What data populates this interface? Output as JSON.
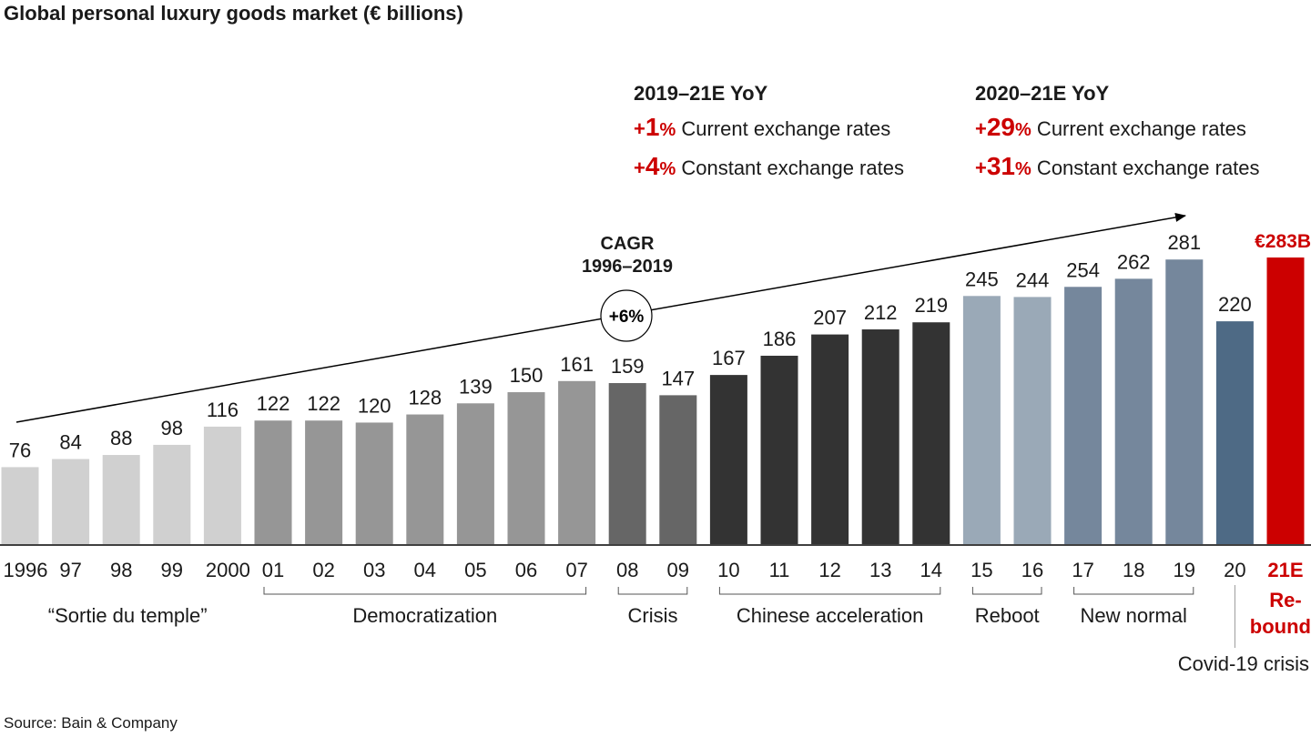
{
  "title": "Global personal luxury goods market (€ billions)",
  "source": "Source: Bain & Company",
  "yoy_blocks": [
    {
      "heading": "2019–21E YoY",
      "rows": [
        {
          "sign": "+",
          "num": "1",
          "pct": "%",
          "label": " Current exchange rates"
        },
        {
          "sign": "+",
          "num": "4",
          "pct": "%",
          "label": " Constant exchange rates"
        }
      ]
    },
    {
      "heading": "2020–21E YoY",
      "rows": [
        {
          "sign": "+",
          "num": "29",
          "pct": "%",
          "label": " Current exchange rates"
        },
        {
          "sign": "+",
          "num": "31",
          "pct": "%",
          "label": " Constant exchange rates"
        }
      ]
    }
  ],
  "cagr": {
    "line1": "CAGR",
    "line2": "1996–2019",
    "value": "+6%"
  },
  "colors": {
    "accent": "#cc0000",
    "sortie": "#d0d0d0",
    "democratization": "#969696",
    "crisis": "#666666",
    "chinese": "#333333",
    "reboot": "#9aa9b7",
    "new_normal": "#75879c",
    "covid": "#4e6a85",
    "rebound": "#cc0000"
  },
  "chart_data": {
    "type": "bar",
    "ylim": [
      0,
      300
    ],
    "categories": [
      "1996",
      "97",
      "98",
      "99",
      "2000",
      "01",
      "02",
      "03",
      "04",
      "05",
      "06",
      "07",
      "08",
      "09",
      "10",
      "11",
      "12",
      "13",
      "14",
      "15",
      "16",
      "17",
      "18",
      "19",
      "20",
      "21E"
    ],
    "values": [
      76,
      84,
      88,
      98,
      116,
      122,
      122,
      120,
      128,
      139,
      150,
      161,
      159,
      147,
      167,
      186,
      207,
      212,
      219,
      245,
      244,
      254,
      262,
      281,
      220,
      283
    ],
    "value_labels": [
      "76",
      "84",
      "88",
      "98",
      "116",
      "122",
      "122",
      "120",
      "128",
      "139",
      "150",
      "161",
      "159",
      "147",
      "167",
      "186",
      "207",
      "212",
      "219",
      "245",
      "244",
      "254",
      "262",
      "281",
      "220",
      "€283B"
    ],
    "bar_groups": [
      "sortie",
      "sortie",
      "sortie",
      "sortie",
      "sortie",
      "democratization",
      "democratization",
      "democratization",
      "democratization",
      "democratization",
      "democratization",
      "democratization",
      "crisis",
      "crisis",
      "chinese",
      "chinese",
      "chinese",
      "chinese",
      "chinese",
      "reboot",
      "reboot",
      "new_normal",
      "new_normal",
      "new_normal",
      "covid",
      "rebound"
    ],
    "periods": [
      {
        "label": "“Sortie du temple”",
        "from": 0,
        "to": 4,
        "bracket": false
      },
      {
        "label": "Democratization",
        "from": 5,
        "to": 11,
        "bracket": true
      },
      {
        "label": "Crisis",
        "from": 12,
        "to": 13,
        "bracket": true
      },
      {
        "label": "Chinese acceleration",
        "from": 14,
        "to": 18,
        "bracket": true
      },
      {
        "label": "Reboot",
        "from": 19,
        "to": 20,
        "bracket": true
      },
      {
        "label": "New normal",
        "from": 21,
        "to": 23,
        "bracket": true
      },
      {
        "label": "Covid-19 crisis",
        "from": 24,
        "to": 24,
        "bracket": false,
        "below": true
      },
      {
        "label": "Re-",
        "label2": "bound",
        "from": 25,
        "to": 25,
        "bracket": false,
        "accent": true
      }
    ]
  }
}
